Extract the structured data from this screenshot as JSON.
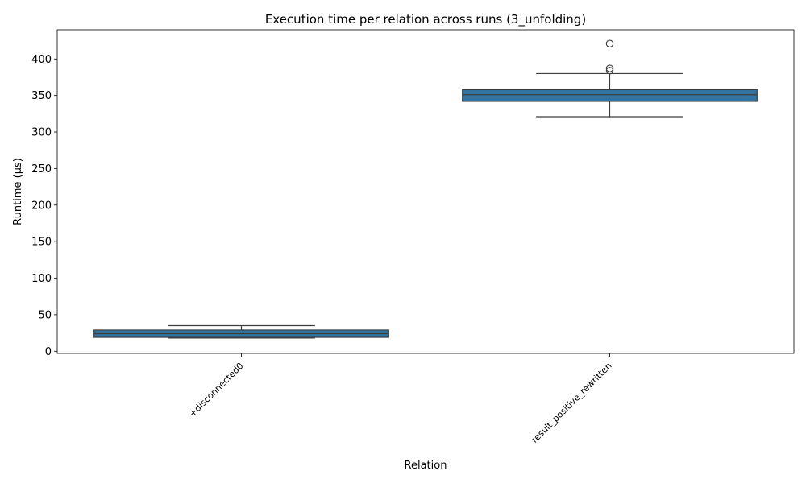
{
  "chart_data": {
    "type": "box",
    "title": "Execution time per relation across runs (3_unfolding)",
    "xlabel": "Relation",
    "ylabel": "Runtime (µs)",
    "ylim": [
      -3,
      440
    ],
    "yticks": [
      0,
      50,
      100,
      150,
      200,
      250,
      300,
      350,
      400
    ],
    "categories": [
      "+disconnected0",
      "result_positive_rewritten"
    ],
    "boxes": [
      {
        "category": "+disconnected0",
        "whislo": 18,
        "q1": 19,
        "med": 24,
        "q3": 29,
        "whishi": 35,
        "fliers": []
      },
      {
        "category": "result_positive_rewritten",
        "whislo": 321,
        "q1": 342,
        "med": 351,
        "q3": 358,
        "whishi": 380,
        "fliers": [
          384,
          387,
          421
        ]
      }
    ],
    "box_color": "#3274a1",
    "line_color": "#3d3d3d",
    "grid": false,
    "legend": "none"
  }
}
